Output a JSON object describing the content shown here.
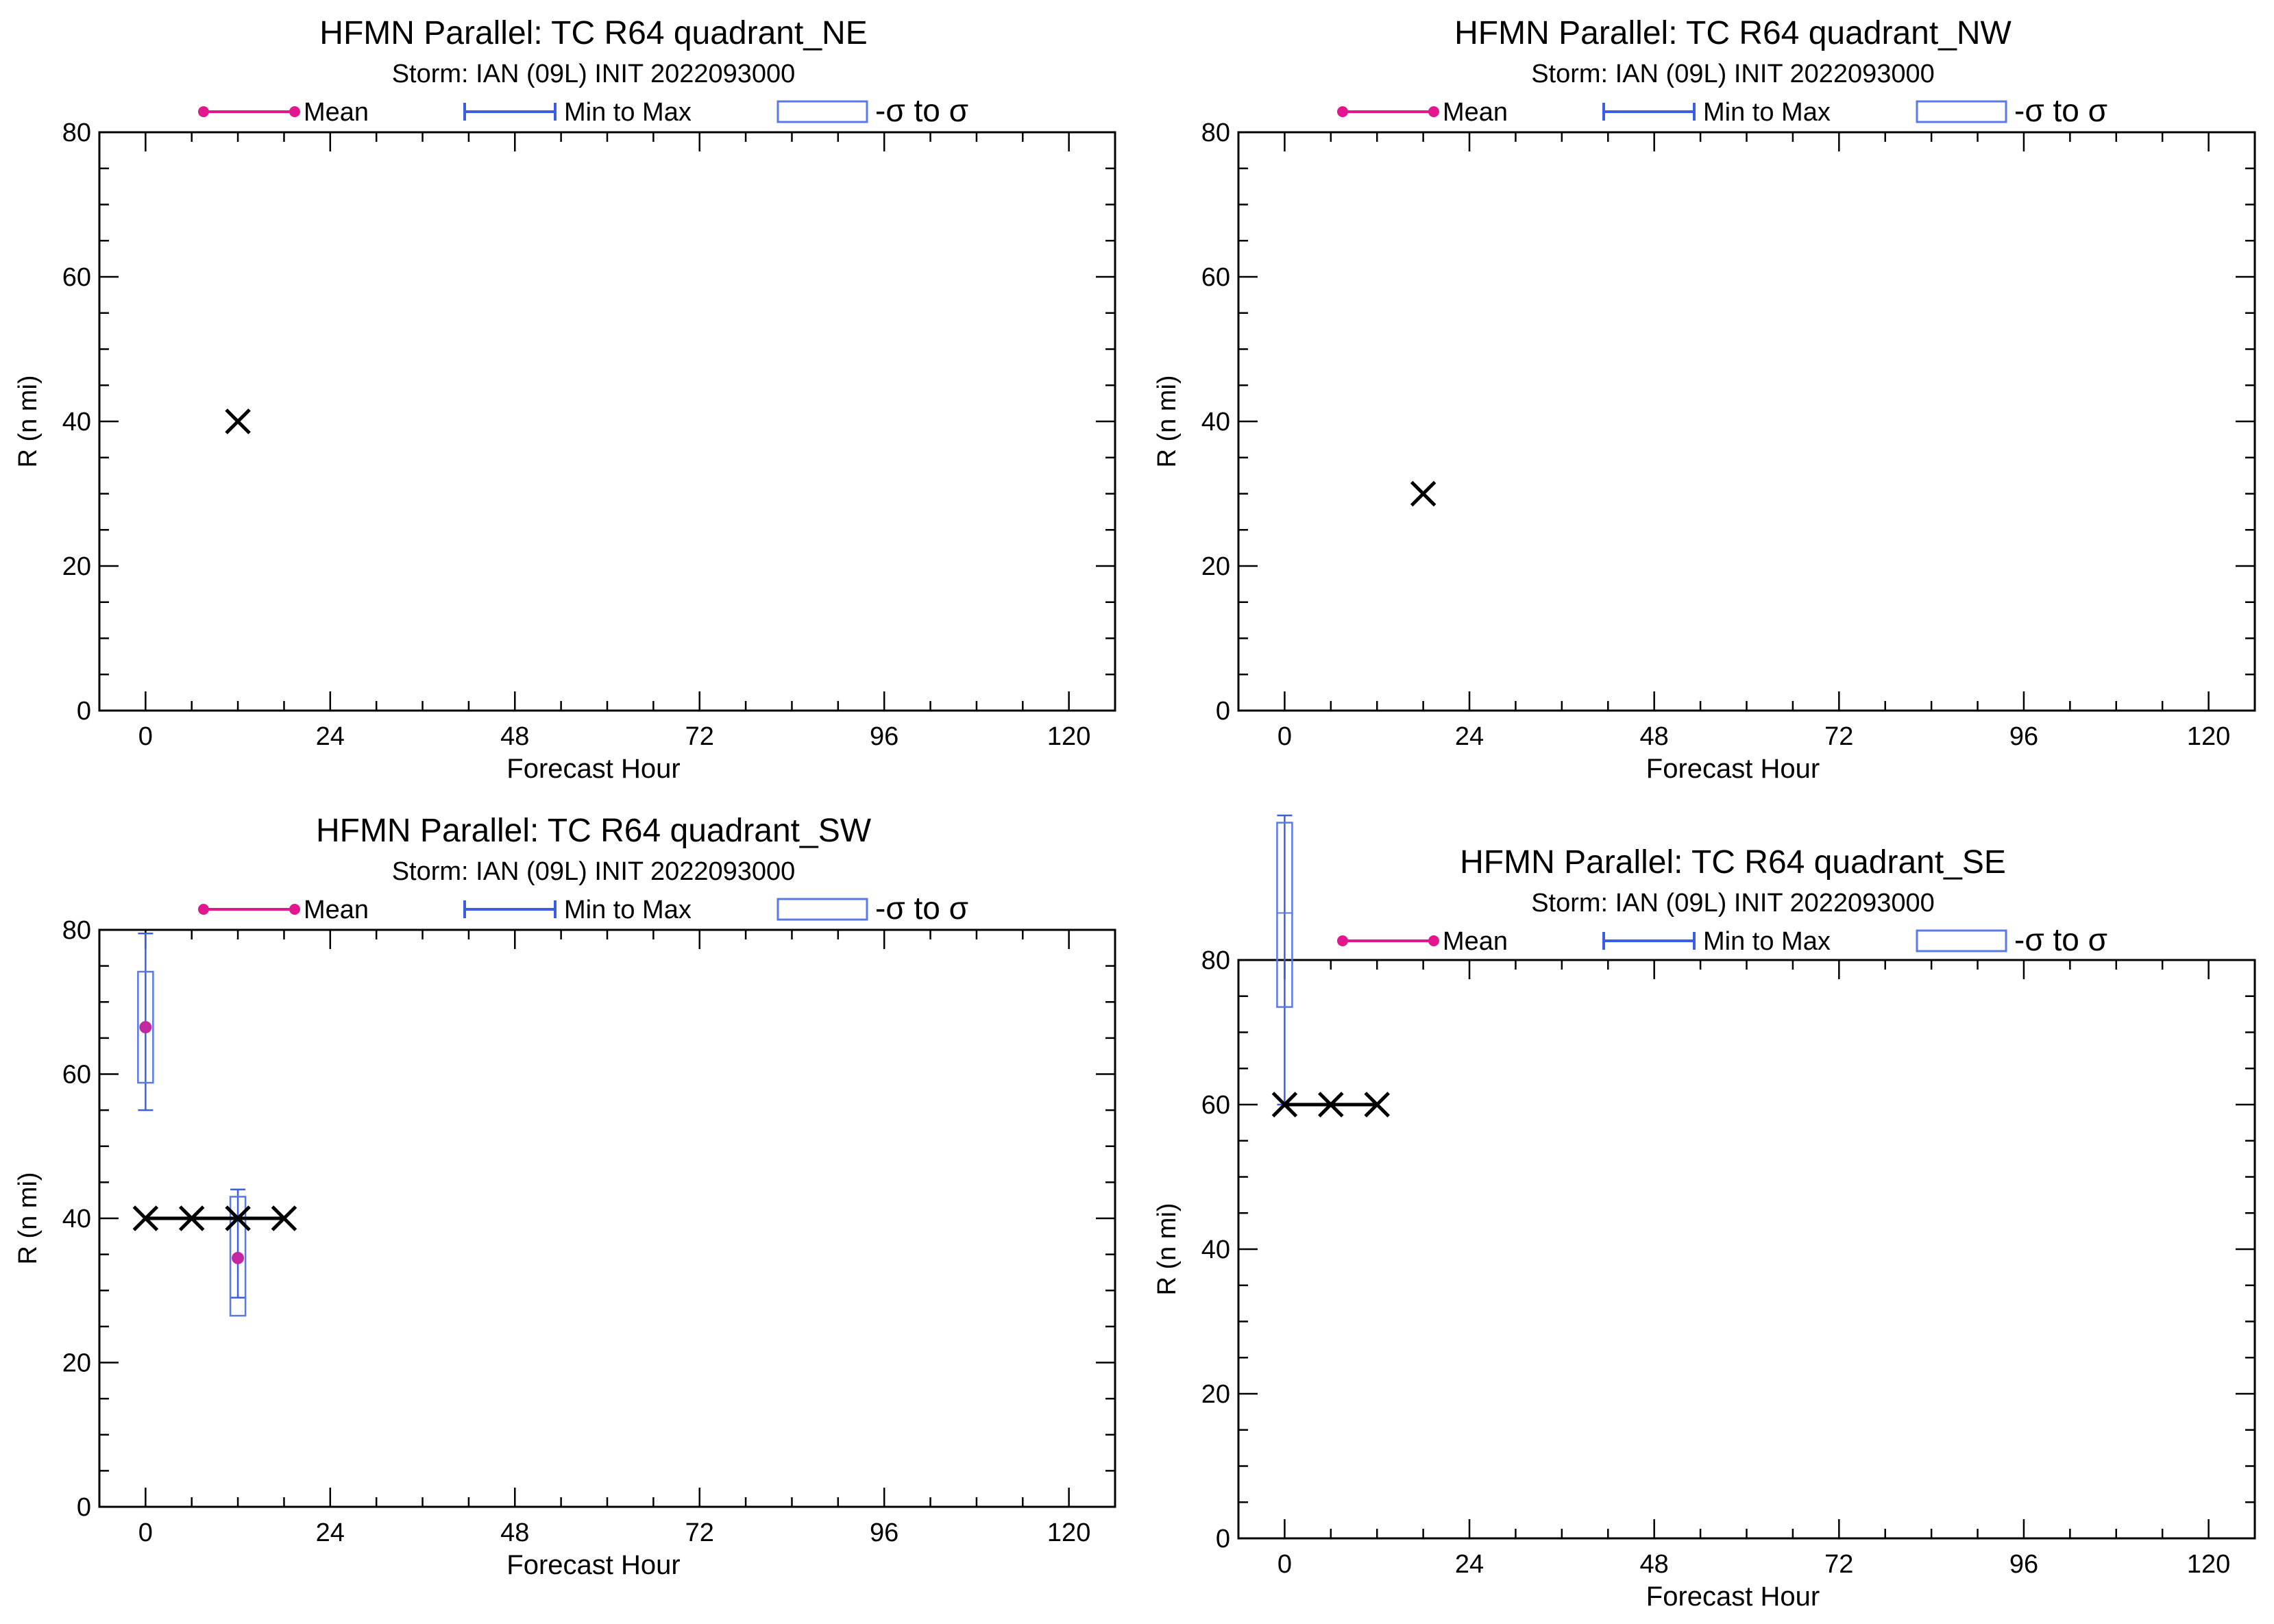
{
  "legend": {
    "mean_label": "Mean",
    "range_label": "Min to Max",
    "sigma_label": "-σ to σ"
  },
  "colors": {
    "mean": "#e3168f",
    "mean_marker": "#c2289f",
    "range": "#3b5ee6",
    "box": "#5a78e8",
    "forecast": "#000000",
    "axis": "#000000"
  },
  "chart_data": [
    {
      "type": "line",
      "title": "HFMN Parallel: TC  R64 quadrant_NE",
      "subtitle": "Storm: IAN (09L) INIT 2022093000",
      "xlabel": "Forecast Hour",
      "ylabel": "R (n mi)",
      "xlim": [
        -6,
        126
      ],
      "ylim": [
        0,
        80
      ],
      "xticks": [
        0,
        24,
        48,
        72,
        96,
        120
      ],
      "yticks": [
        0,
        20,
        40,
        60,
        80
      ],
      "forecast": {
        "x": [
          12
        ],
        "y": [
          40
        ]
      },
      "stats": []
    },
    {
      "type": "line",
      "title": "HFMN Parallel: TC  R64 quadrant_NW",
      "subtitle": "Storm: IAN (09L) INIT 2022093000",
      "xlabel": "Forecast Hour",
      "ylabel": "R (n mi)",
      "xlim": [
        -6,
        126
      ],
      "ylim": [
        0,
        80
      ],
      "xticks": [
        0,
        24,
        48,
        72,
        96,
        120
      ],
      "yticks": [
        0,
        20,
        40,
        60,
        80
      ],
      "forecast": {
        "x": [
          18
        ],
        "y": [
          30
        ]
      },
      "stats": []
    },
    {
      "type": "line",
      "title": "HFMN Parallel: TC  R64 quadrant_SW",
      "subtitle": "Storm: IAN (09L) INIT 2022093000",
      "xlabel": "Forecast Hour",
      "ylabel": "R (n mi)",
      "xlim": [
        -6,
        126
      ],
      "ylim": [
        0,
        80
      ],
      "xticks": [
        0,
        24,
        48,
        72,
        96,
        120
      ],
      "yticks": [
        0,
        20,
        40,
        60,
        80
      ],
      "forecast": {
        "x": [
          0,
          6,
          12,
          18
        ],
        "y": [
          40,
          40,
          40,
          40
        ]
      },
      "stats": [
        {
          "x": 0,
          "mean": 66.5,
          "min": 55,
          "max": 79.5,
          "sigma_low": 58.8,
          "sigma_high": 74.2
        },
        {
          "x": 12,
          "mean": 34.5,
          "min": 29,
          "max": 44,
          "sigma_low": 26.5,
          "sigma_high": 43
        }
      ]
    },
    {
      "type": "line",
      "title": "HFMN Parallel: TC  R64 quadrant_SE",
      "subtitle": "Storm: IAN (09L) INIT 2022093000",
      "xlabel": "Forecast Hour",
      "ylabel": "R (n mi)",
      "xlim": [
        -6,
        126
      ],
      "ylim": [
        0,
        80
      ],
      "xticks": [
        0,
        24,
        48,
        72,
        96,
        120
      ],
      "yticks": [
        0,
        20,
        40,
        60,
        80
      ],
      "forecast": {
        "x": [
          0,
          6,
          12
        ],
        "y": [
          60,
          60,
          60
        ]
      },
      "stats": [
        {
          "x": 0,
          "mean": 86.5,
          "min": 60,
          "max": 100,
          "sigma_low": 73.5,
          "sigma_high": 99
        }
      ]
    }
  ]
}
